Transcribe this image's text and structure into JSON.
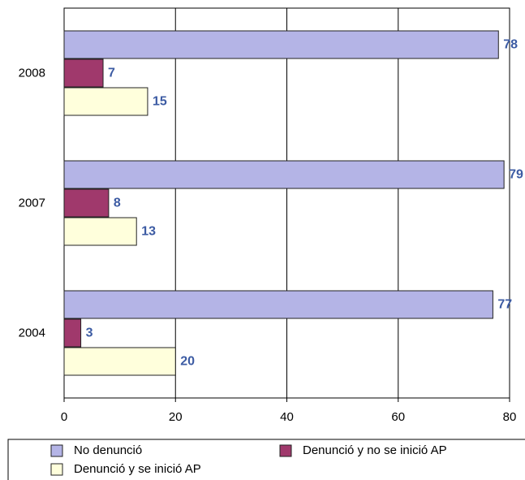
{
  "chart_data": {
    "type": "hbar",
    "categories": [
      "2008",
      "2007",
      "2004"
    ],
    "series": [
      {
        "name": "No denunció",
        "color": "#b4b4e6",
        "values": [
          78,
          79,
          77
        ]
      },
      {
        "name": "Denunció y no se inició AP",
        "color": "#a0396c",
        "values": [
          7,
          8,
          3
        ]
      },
      {
        "name": "Denunció y se inició AP",
        "color": "#ffffdc",
        "values": [
          15,
          13,
          20
        ]
      }
    ],
    "xlim": [
      0,
      80
    ],
    "xticks": [
      0,
      20,
      40,
      60,
      80
    ],
    "grid": true,
    "legend": "bottom"
  }
}
